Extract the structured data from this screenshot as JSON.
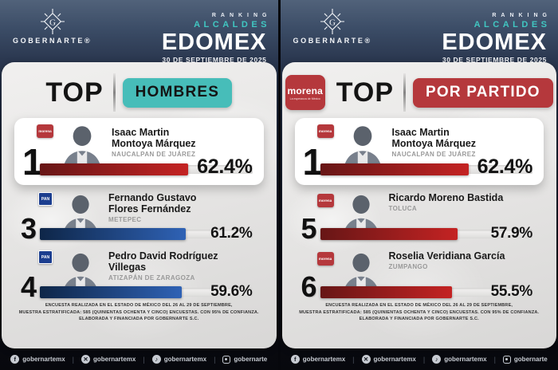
{
  "brand": {
    "name": "GOBERNARTE®"
  },
  "masthead": {
    "ranking": "RANKING",
    "category": "ALCALDES",
    "region": "EDOMEX",
    "date": "30 DE SEPTIEMBRE DE 2025"
  },
  "labels": {
    "morena": "morena",
    "pan": "PAN"
  },
  "colors": {
    "teal": "#47bdb9",
    "morena_red": "#b5383c",
    "pan_blue": "#1c3e8f",
    "bar_red": [
      "#671616",
      "#c42323"
    ],
    "bar_blue": [
      "#0e2648",
      "#2f62b5"
    ]
  },
  "panels": [
    {
      "party_logo": null,
      "title": "TOP",
      "badge": {
        "label": "HOMBRES",
        "bg": "#47bdb9",
        "text_color": "#141414"
      },
      "entries": [
        {
          "rank": "1",
          "party": "morena",
          "name_line1": "Isaac Martin",
          "name_line2": "Montoya Márquez",
          "municipality": "NAUCALPAN DE JUÁREZ",
          "percent_label": "62.4%",
          "percent_value": 62.4,
          "bar": "red",
          "featured": true
        },
        {
          "rank": "3",
          "party": "PAN",
          "name_line1": "Fernando Gustavo",
          "name_line2": "Flores Fernández",
          "municipality": "METEPEC",
          "percent_label": "61.2%",
          "percent_value": 61.2,
          "bar": "blue",
          "featured": false
        },
        {
          "rank": "4",
          "party": "PAN",
          "name_line1": "Pedro David Rodríguez",
          "name_line2": "Villegas",
          "municipality": "ATIZAPÁN DE ZARAGOZA",
          "percent_label": "59.6%",
          "percent_value": 59.6,
          "bar": "blue",
          "featured": false
        }
      ]
    },
    {
      "party_logo": {
        "name": "morena",
        "tagline": "La esperanza de México",
        "bg": "#b5383c"
      },
      "title": "TOP",
      "badge": {
        "label": "POR PARTIDO",
        "bg": "#b5383c",
        "text_color": "#ffffff"
      },
      "entries": [
        {
          "rank": "1",
          "party": "morena",
          "name_line1": "Isaac Martin",
          "name_line2": "Montoya Márquez",
          "municipality": "NAUCALPAN DE JUÁREZ",
          "percent_label": "62.4%",
          "percent_value": 62.4,
          "bar": "red",
          "featured": true
        },
        {
          "rank": "5",
          "party": "morena",
          "name_line1": "Ricardo Moreno Bastida",
          "name_line2": "",
          "municipality": "TOLUCA",
          "percent_label": "57.9%",
          "percent_value": 57.9,
          "bar": "red",
          "featured": false
        },
        {
          "rank": "6",
          "party": "morena",
          "name_line1": "Roselia Veridiana García",
          "name_line2": "",
          "municipality": "ZUMPANGO",
          "percent_label": "55.5%",
          "percent_value": 55.5,
          "bar": "red",
          "featured": false
        }
      ]
    }
  ],
  "footnote_lines": [
    "ENCUESTA REALIZADA EN EL ESTADO DE MÉXICO DEL 26 AL 29 DE SEPTIEMBRE,",
    "MUESTRA ESTRATIFICADA: 585 (QUINIENTAS OCHENTA Y CINCO) ENCUESTAS. CON 95% DE CONFIANZA.",
    "ELABORADA Y FINANCIADA POR GOBERNARTE S.C."
  ],
  "social_links": [
    {
      "icon": "facebook-icon",
      "handle": "gobernartemx"
    },
    {
      "icon": "x-icon",
      "handle": "gobernartemx"
    },
    {
      "icon": "tiktok-icon",
      "handle": "gobernartemx"
    },
    {
      "icon": "instagram-icon",
      "handle": "gobernarte"
    }
  ]
}
